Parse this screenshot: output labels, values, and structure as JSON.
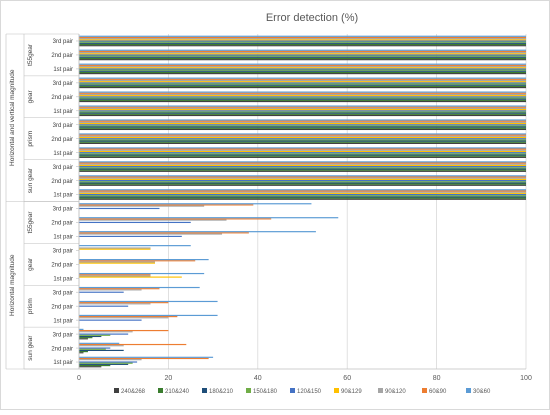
{
  "chart_data": {
    "type": "bar",
    "orientation": "horizontal",
    "title": "Error detection (%)",
    "xlim": [
      0,
      100
    ],
    "x_ticks": [
      0,
      20,
      40,
      60,
      80,
      100
    ],
    "grid": "vertical",
    "legend_position": "bottom",
    "series": [
      {
        "name": "240&268",
        "color": "#404040"
      },
      {
        "name": "210&240",
        "color": "#3a7d2e"
      },
      {
        "name": "180&210",
        "color": "#1f4e79"
      },
      {
        "name": "150&180",
        "color": "#70ad47"
      },
      {
        "name": "120&150",
        "color": "#4472c4"
      },
      {
        "name": "90&129",
        "color": "#ffc000"
      },
      {
        "name": "90&120",
        "color": "#a5a5a5"
      },
      {
        "name": "60&90",
        "color": "#ed7d31"
      },
      {
        "name": "30&60",
        "color": "#5b9bd5"
      }
    ],
    "groups": [
      {
        "label": "Horizontal and vertical magnitude",
        "subgroups": [
          {
            "label": "t55gear",
            "rows": [
              {
                "label": "3rd pair",
                "values": [
                  100,
                  100,
                  100,
                  100,
                  100,
                  100,
                  100,
                  100,
                  100
                ]
              },
              {
                "label": "2nd pair",
                "values": [
                  100,
                  100,
                  100,
                  100,
                  100,
                  100,
                  100,
                  100,
                  100
                ]
              },
              {
                "label": "1st pair",
                "values": [
                  100,
                  100,
                  100,
                  100,
                  100,
                  100,
                  100,
                  100,
                  100
                ]
              }
            ]
          },
          {
            "label": "gear",
            "rows": [
              {
                "label": "3rd pair",
                "values": [
                  100,
                  100,
                  100,
                  100,
                  100,
                  100,
                  100,
                  100,
                  100
                ]
              },
              {
                "label": "2nd pair",
                "values": [
                  100,
                  100,
                  100,
                  100,
                  100,
                  100,
                  100,
                  100,
                  100
                ]
              },
              {
                "label": "1st pair",
                "values": [
                  100,
                  100,
                  100,
                  100,
                  100,
                  100,
                  100,
                  100,
                  100
                ]
              }
            ]
          },
          {
            "label": "prism",
            "rows": [
              {
                "label": "3rd pair",
                "values": [
                  100,
                  100,
                  100,
                  100,
                  100,
                  100,
                  100,
                  100,
                  100
                ]
              },
              {
                "label": "2nd pair",
                "values": [
                  100,
                  100,
                  100,
                  100,
                  100,
                  100,
                  100,
                  100,
                  100
                ]
              },
              {
                "label": "1st pair",
                "values": [
                  100,
                  100,
                  100,
                  100,
                  100,
                  100,
                  100,
                  100,
                  100
                ]
              }
            ]
          },
          {
            "label": "sun gear",
            "rows": [
              {
                "label": "3rd pair",
                "values": [
                  100,
                  100,
                  100,
                  100,
                  100,
                  100,
                  100,
                  100,
                  100
                ]
              },
              {
                "label": "2nd pair",
                "values": [
                  100,
                  100,
                  100,
                  100,
                  100,
                  100,
                  100,
                  100,
                  100
                ]
              },
              {
                "label": "1st pair",
                "values": [
                  100,
                  100,
                  100,
                  100,
                  100,
                  100,
                  100,
                  100,
                  100
                ]
              }
            ]
          }
        ]
      },
      {
        "label": "Horizontal magnitude",
        "subgroups": [
          {
            "label": "t55gear",
            "rows": [
              {
                "label": "3rd pair",
                "values": [
                  0,
                  0,
                  0,
                  0,
                  18,
                  0,
                  28,
                  39,
                  52
                ]
              },
              {
                "label": "2nd pair",
                "values": [
                  0,
                  0,
                  0,
                  0,
                  25,
                  0,
                  33,
                  43,
                  58
                ]
              },
              {
                "label": "1st pair",
                "values": [
                  0,
                  0,
                  0,
                  0,
                  23,
                  0,
                  32,
                  38,
                  53
                ]
              }
            ]
          },
          {
            "label": "gear",
            "rows": [
              {
                "label": "3rd pair",
                "values": [
                  0,
                  0,
                  0,
                  0,
                  0,
                  16,
                  16,
                  0,
                  25
                ]
              },
              {
                "label": "2nd pair",
                "values": [
                  0,
                  0,
                  0,
                  0,
                  0,
                  17,
                  17,
                  26,
                  29
                ]
              },
              {
                "label": "1st pair",
                "values": [
                  0,
                  0,
                  0,
                  0,
                  0,
                  23,
                  16,
                  16,
                  28
                ]
              }
            ]
          },
          {
            "label": "prism",
            "rows": [
              {
                "label": "3rd pair",
                "values": [
                  0,
                  0,
                  0,
                  0,
                  10,
                  0,
                  14,
                  18,
                  27
                ]
              },
              {
                "label": "2nd pair",
                "values": [
                  0,
                  0,
                  0,
                  0,
                  11,
                  0,
                  16,
                  20,
                  31
                ]
              },
              {
                "label": "1st pair",
                "values": [
                  0,
                  0,
                  0,
                  0,
                  14,
                  0,
                  20,
                  22,
                  31
                ]
              }
            ]
          },
          {
            "label": "sun gear",
            "rows": [
              {
                "label": "3rd pair",
                "values": [
                  2,
                  3,
                  5,
                  7,
                  11,
                  0,
                  12,
                  20,
                  1
                ]
              },
              {
                "label": "2nd pair",
                "values": [
                  1,
                  2,
                  10,
                  6,
                  7,
                  0,
                  10,
                  24,
                  9
                ]
              },
              {
                "label": "1st pair",
                "values": [
                  5,
                  7,
                  11,
                  12,
                  13,
                  0,
                  14,
                  29,
                  30
                ]
              }
            ]
          }
        ]
      }
    ]
  }
}
